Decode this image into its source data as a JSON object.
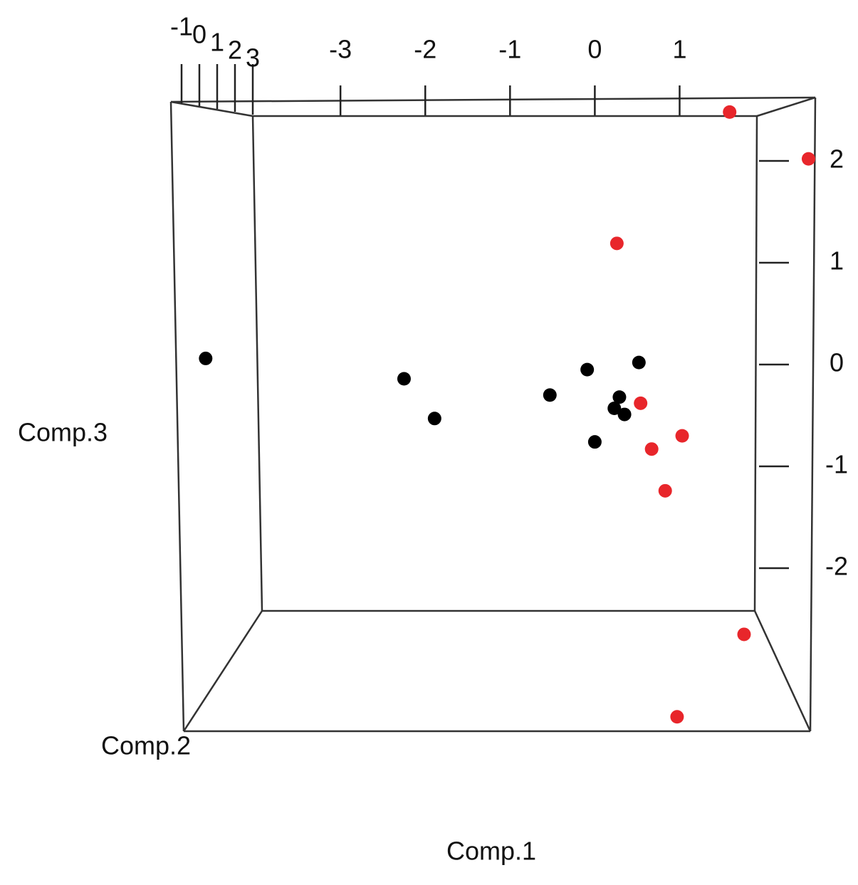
{
  "chart_data": {
    "type": "scatter3d",
    "xlabel": "Comp.1",
    "zlabel": "Comp.2",
    "ylabel": "Comp.3",
    "xlim": [
      -5,
      2.6
    ],
    "xticks": [
      -3,
      -2,
      -1,
      0,
      1
    ],
    "ylim": [
      -2.45,
      2.45
    ],
    "yticks": [
      -2,
      -1,
      0,
      1,
      2
    ],
    "zlim": [
      -1,
      3
    ],
    "zticks": [
      -1,
      0,
      1,
      2,
      3
    ],
    "series": [
      {
        "color": "#000000",
        "x": [
          -4.59,
          -2.25,
          -1.89,
          -0.53,
          -0.09,
          0.52,
          0.29,
          0.23,
          0.35,
          0.0
        ],
        "values": [
          0.06,
          -0.14,
          -0.53,
          -0.3,
          -0.05,
          0.02,
          -0.32,
          -0.43,
          -0.49,
          -0.76
        ]
      },
      {
        "color": "#e8262b",
        "x": [
          1.59,
          2.52,
          0.26,
          0.54,
          1.03,
          0.67,
          0.83,
          1.76,
          0.97
        ],
        "values": [
          2.48,
          2.02,
          1.19,
          -0.38,
          -0.7,
          -0.83,
          -1.24,
          -2.65,
          -3.46
        ]
      }
    ]
  }
}
